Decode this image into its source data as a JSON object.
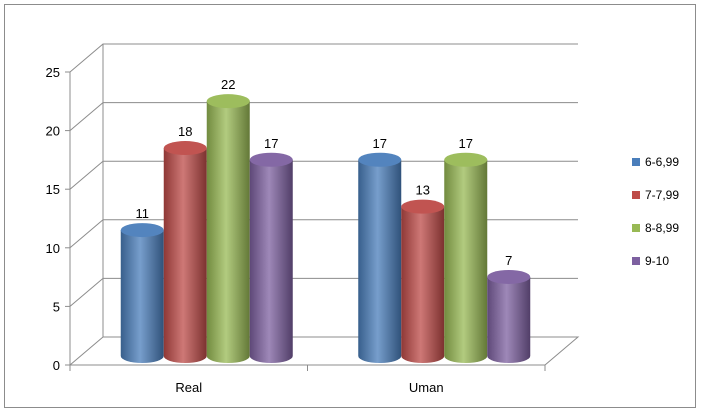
{
  "chart_data": {
    "type": "bar",
    "categories": [
      "Real",
      "Uman"
    ],
    "series": [
      {
        "name": "6-6,99",
        "values": [
          11,
          17
        ],
        "color": "#4a7ebb"
      },
      {
        "name": "7-7,99",
        "values": [
          18,
          13
        ],
        "color": "#be4b48"
      },
      {
        "name": "8-8,99",
        "values": [
          22,
          17
        ],
        "color": "#98b954"
      },
      {
        "name": "9-10",
        "values": [
          17,
          7
        ],
        "color": "#7d60a0"
      }
    ],
    "yticks": [
      0,
      5,
      10,
      15,
      20,
      25
    ],
    "ylim": [
      0,
      25
    ],
    "grid": true,
    "legend": "right",
    "data_labels": true,
    "title": "",
    "xlabel": "",
    "ylabel": ""
  }
}
